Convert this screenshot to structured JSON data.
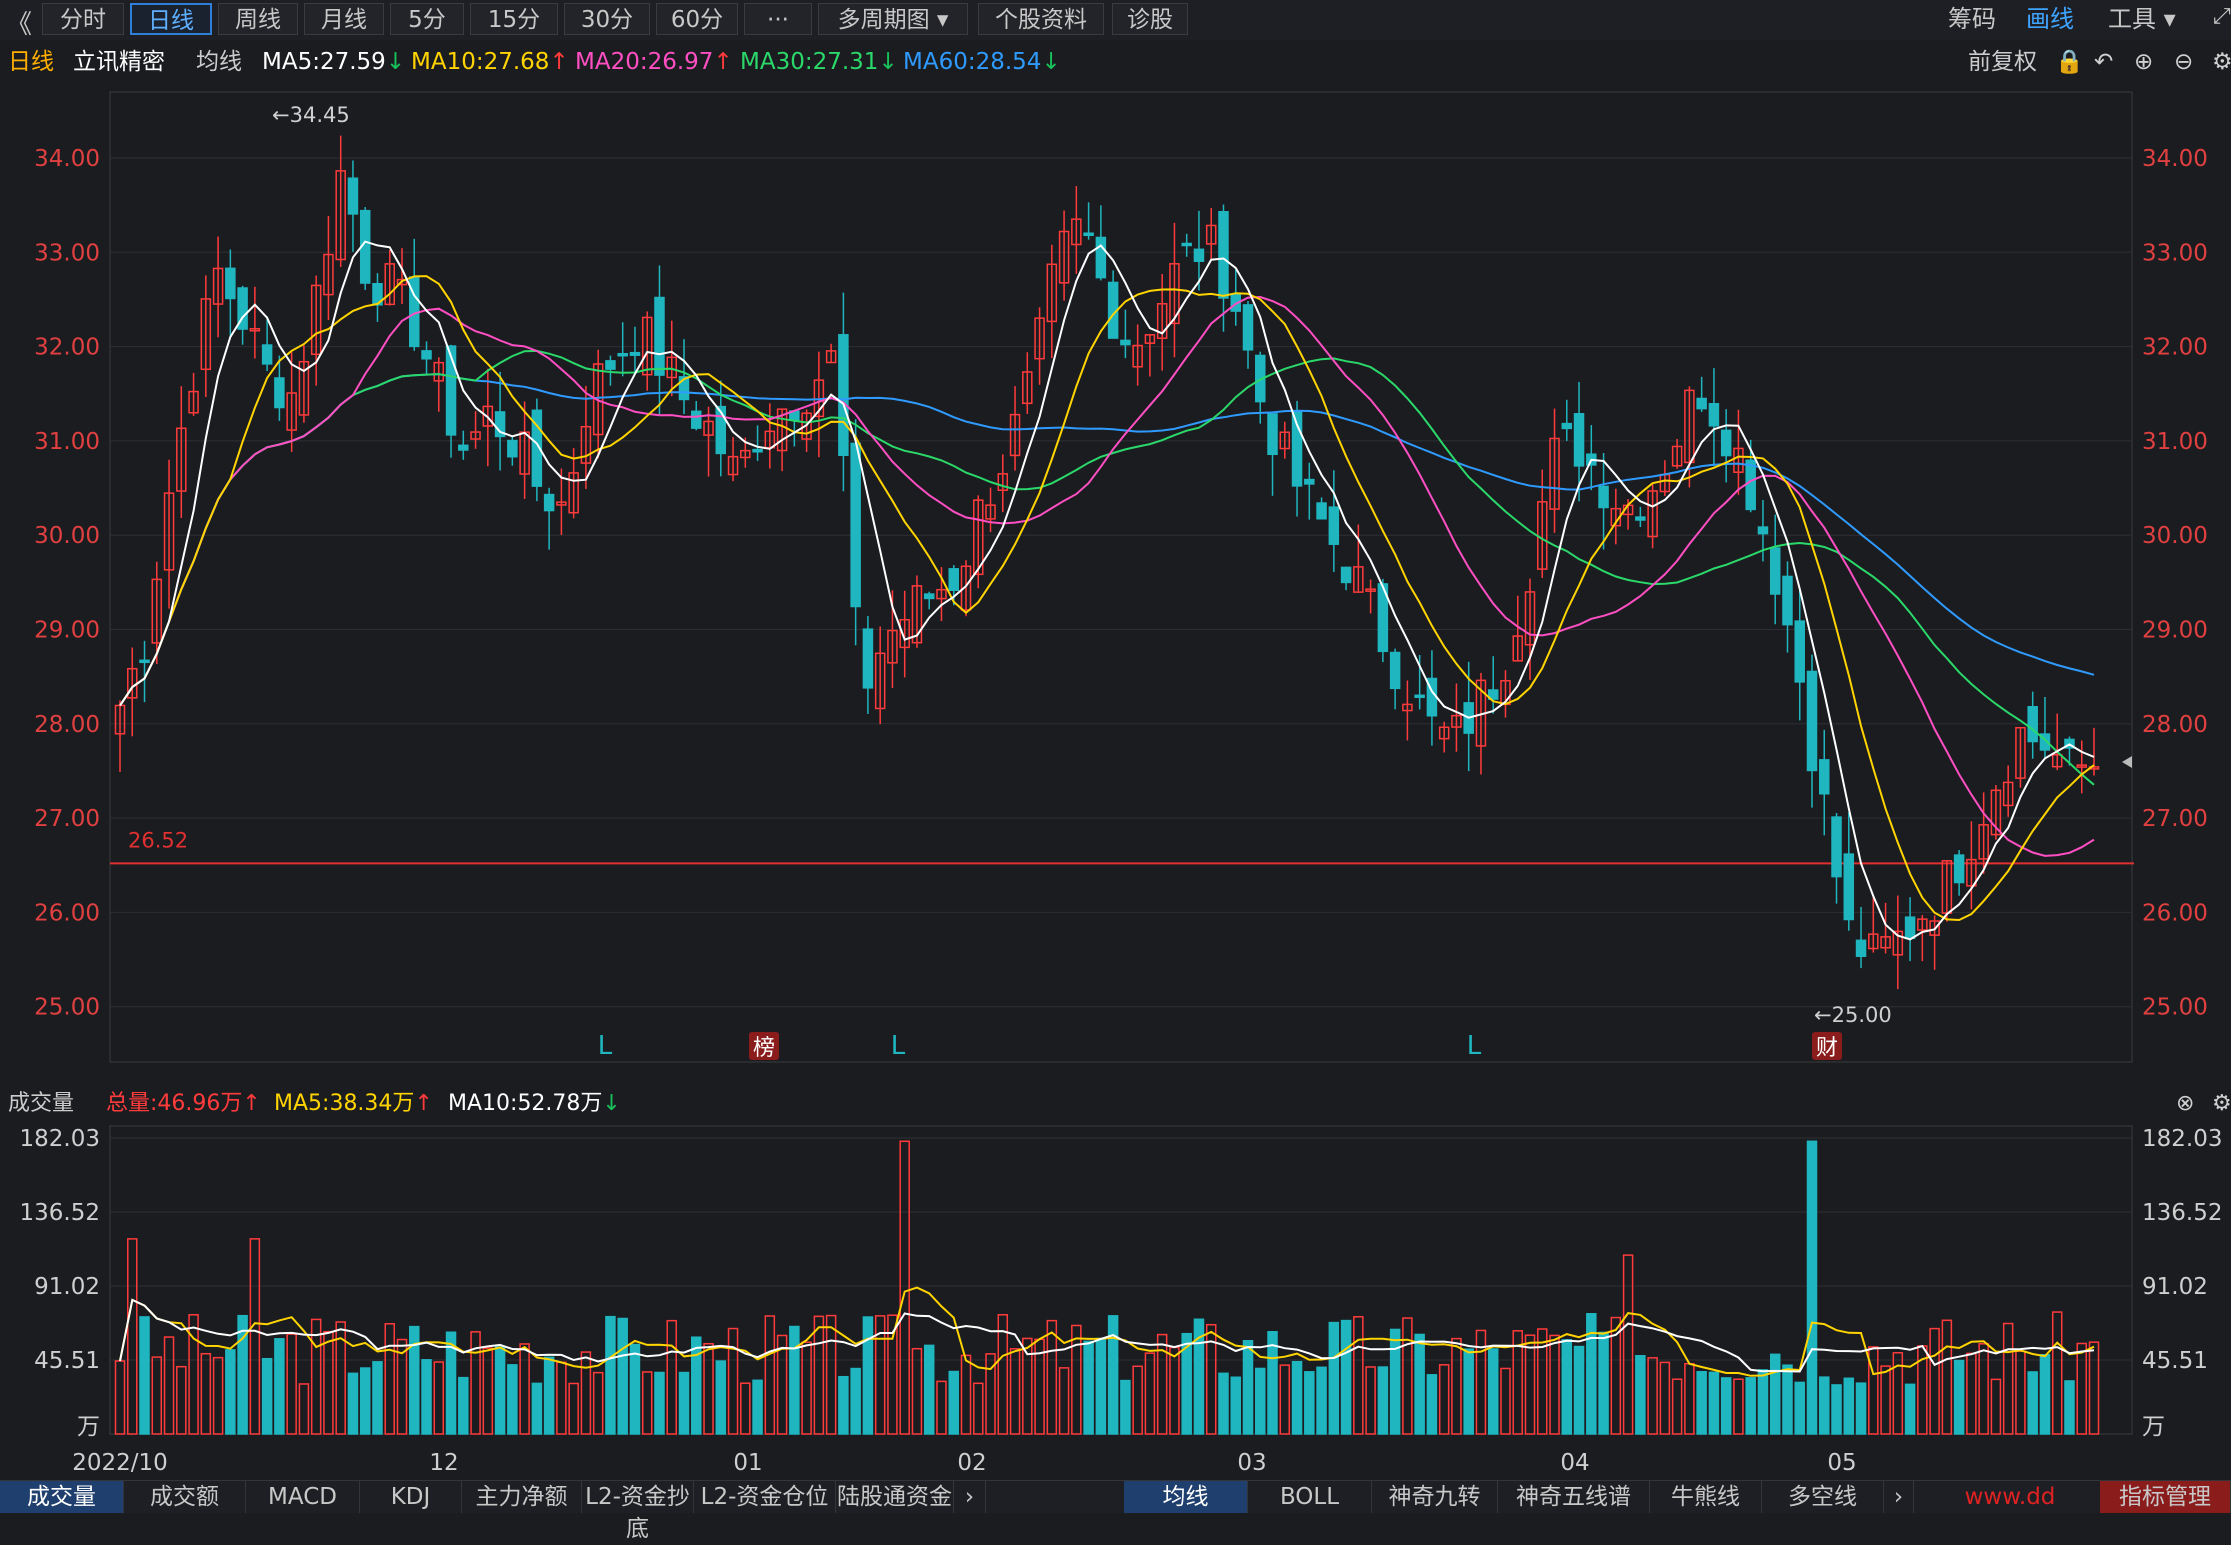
{
  "toolbar": {
    "back_icon": "double-chevron-left-icon",
    "tabs": [
      "分时",
      "日线",
      "周线",
      "月线",
      "5分",
      "15分",
      "30分",
      "60分",
      "···",
      "多周期图",
      "个股资料",
      "诊股"
    ],
    "active_tab": "日线",
    "right": {
      "chip": "筹码",
      "draw": "画线",
      "tools": "工具"
    }
  },
  "info": {
    "period": "日线",
    "stock": "立讯精密",
    "ma_label": "均线",
    "ma5": "MA5:27.59",
    "ma10": "MA10:27.68",
    "ma20": "MA20:26.97",
    "ma30": "MA30:27.31",
    "ma60": "MA60:28.54",
    "adjust": "前复权",
    "colors": {
      "ma5": "#ffffff",
      "ma10": "#ffd400",
      "ma20": "#ff4fc3",
      "ma30": "#2bd86a",
      "ma60": "#2f9bff",
      "up": "#ff3b3b",
      "down": "#1fb6c0"
    }
  },
  "chart_data": [
    {
      "type": "candlestick",
      "title": "立讯精密 日线",
      "ylim": [
        24.8,
        34.6
      ],
      "y_ticks": [
        "34.00",
        "33.00",
        "32.00",
        "31.00",
        "30.00",
        "29.00",
        "28.00",
        "27.00",
        "26.00",
        "25.00"
      ],
      "x_labels": [
        "2022/10",
        "12",
        "01",
        "02",
        "03",
        "04",
        "05"
      ],
      "high_label": "←34.45",
      "low_label": "←25.00",
      "ref_line": {
        "value": 26.52,
        "label": "26.52"
      },
      "markers": [
        "L",
        "榜",
        "L",
        "L",
        "财"
      ],
      "ohlc_anchor_closes": [
        28.2,
        28.9,
        30.5,
        31.8,
        32.8,
        32.3,
        31.7,
        31.5,
        32.6,
        33.9,
        32.8,
        32.6,
        32.2,
        31.5,
        30.9,
        31.3,
        31.0,
        30.5,
        30.3,
        31.5,
        31.9,
        32.2,
        31.8,
        31.4,
        31.1,
        30.6,
        31.2,
        31.4,
        31.6,
        31.9,
        28.3,
        28.9,
        29.2,
        29.4,
        29.6,
        30.4,
        30.9,
        31.7,
        32.9,
        33.3,
        32.5,
        32.0,
        32.4,
        32.9,
        33.1,
        32.7,
        31.6,
        30.9,
        30.4,
        30.0,
        29.6,
        29.0,
        28.5,
        28.0,
        27.8,
        28.2,
        28.6,
        29.5,
        30.8,
        31.0,
        30.6,
        30.3,
        30.5,
        31.0,
        31.6,
        31.2,
        30.6,
        29.7,
        28.6,
        27.2,
        25.8,
        25.5,
        25.7,
        26.0,
        26.3,
        26.8,
        27.4,
        27.9,
        27.8,
        27.5,
        27.59
      ]
    },
    {
      "type": "bar",
      "title": "成交量",
      "ylim": [
        0,
        182.03
      ],
      "y_ticks": [
        "182.03",
        "136.52",
        "91.02",
        "45.51",
        "万"
      ],
      "summary": {
        "total": "总量:46.96万",
        "ma5": "MA5:38.34万",
        "ma10": "MA10:52.78万"
      }
    }
  ],
  "bottom": {
    "left_tabs": [
      "成交量",
      "成交额",
      "MACD",
      "KDJ",
      "主力净额",
      "L2-资金抄底",
      "L2-资金仓位",
      "陆股通资金"
    ],
    "right_tabs": [
      "均线",
      "BOLL",
      "神奇九转",
      "神奇五线谱",
      "牛熊线",
      "多空线",
      "指标管理"
    ],
    "watermark": "www.dd"
  }
}
